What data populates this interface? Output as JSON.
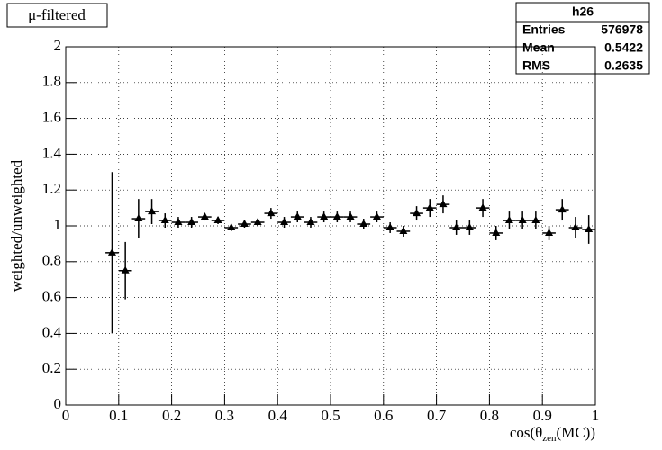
{
  "chart_data": {
    "type": "errorbar",
    "title": "μ-filtered",
    "y_label": "weighted/unweighted",
    "x_label": {
      "prefix": "cos(θ",
      "sub": "zen",
      "suffix": "(MC))"
    },
    "stats": {
      "name": "h26",
      "rows": [
        [
          "Entries",
          576978
        ],
        [
          "Mean",
          0.5422
        ],
        [
          "RMS",
          0.2635
        ]
      ]
    },
    "x": [
      0.0875,
      0.1125,
      0.1375,
      0.1625,
      0.1875,
      0.2125,
      0.2375,
      0.2625,
      0.2875,
      0.3125,
      0.3375,
      0.3625,
      0.3875,
      0.4125,
      0.4375,
      0.4625,
      0.4875,
      0.5125,
      0.5375,
      0.5625,
      0.5875,
      0.6125,
      0.6375,
      0.6625,
      0.6875,
      0.7125,
      0.7375,
      0.7625,
      0.7875,
      0.8125,
      0.8375,
      0.8625,
      0.8875,
      0.9125,
      0.9375,
      0.9625,
      0.9875
    ],
    "xerr": 0.0125,
    "values": [
      0.85,
      0.75,
      1.04,
      1.08,
      1.03,
      1.02,
      1.02,
      1.05,
      1.03,
      0.99,
      1.01,
      1.02,
      1.07,
      1.02,
      1.05,
      1.02,
      1.05,
      1.05,
      1.05,
      1.01,
      1.05,
      0.99,
      0.97,
      1.07,
      1.1,
      1.12,
      0.99,
      0.99,
      1.1,
      0.96,
      1.03,
      1.03,
      1.03,
      0.96,
      1.09,
      0.99,
      0.98
    ],
    "errors": [
      0.45,
      0.16,
      0.11,
      0.07,
      0.04,
      0.03,
      0.03,
      0.02,
      0.02,
      0.02,
      0.02,
      0.02,
      0.03,
      0.03,
      0.03,
      0.03,
      0.03,
      0.03,
      0.03,
      0.03,
      0.03,
      0.03,
      0.03,
      0.04,
      0.05,
      0.05,
      0.04,
      0.04,
      0.05,
      0.04,
      0.05,
      0.05,
      0.05,
      0.04,
      0.06,
      0.06,
      0.08
    ],
    "color": "#000000",
    "xlim": [
      0,
      1
    ],
    "xticks": [
      0,
      0.1,
      0.2,
      0.3,
      0.4,
      0.5,
      0.6,
      0.7,
      0.8,
      0.9,
      1
    ],
    "ylim": [
      0,
      2
    ],
    "yticks": [
      0,
      0.2,
      0.4,
      0.6,
      0.8,
      1,
      1.2,
      1.4,
      1.6,
      1.8,
      2
    ],
    "grid": true
  }
}
